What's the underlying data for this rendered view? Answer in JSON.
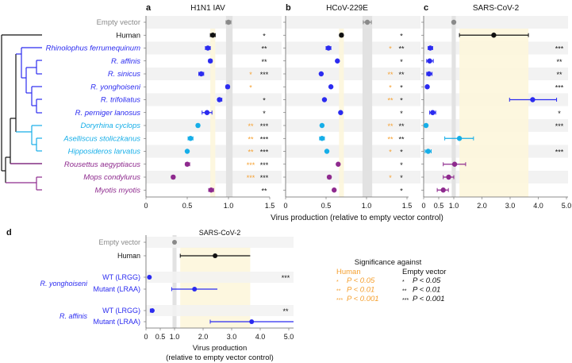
{
  "colors": {
    "black": "#111111",
    "blue": "#2b2bf0",
    "cyan": "#16aee8",
    "purple": "#8e2a8e",
    "grey": "#8a8a8a",
    "orange": "#f5a030",
    "band_grey": "#e2e2e2",
    "band_yellow": "#fdf6dc",
    "stripe": "#f2f2f2"
  },
  "xlabel": "Virus production (relative to empty vector control)",
  "rows": [
    {
      "label": "Empty vector",
      "color": "grey",
      "italic": false
    },
    {
      "label": "Human",
      "color": "black",
      "italic": false
    },
    {
      "label": "Rhinolophus ferrumequinum",
      "color": "blue",
      "italic": true
    },
    {
      "label": "R. affinis",
      "color": "blue",
      "italic": true
    },
    {
      "label": "R. sinicus",
      "color": "blue",
      "italic": true
    },
    {
      "label": "R. yonghoiseni",
      "color": "blue",
      "italic": true
    },
    {
      "label": "R. trifoliatus",
      "color": "blue",
      "italic": true
    },
    {
      "label": "R. perniger lanosus",
      "color": "blue",
      "italic": true
    },
    {
      "label": "Doryrhina cyclops",
      "color": "cyan",
      "italic": true
    },
    {
      "label": "Aselliscus stoliczkanus",
      "color": "cyan",
      "italic": true
    },
    {
      "label": "Hipposideros larvatus",
      "color": "cyan",
      "italic": true
    },
    {
      "label": "Rousettus aegyptiacus",
      "color": "purple",
      "italic": true
    },
    {
      "label": "Mops condylurus",
      "color": "purple",
      "italic": true
    },
    {
      "label": "Myotis myotis",
      "color": "purple",
      "italic": true
    }
  ],
  "chart_data": [
    {
      "panel": "a",
      "type": "scatter",
      "title": "H1N1 IAV",
      "xlim": [
        0,
        1.5
      ],
      "ticks": [
        "0",
        "0.5",
        "1.0",
        "1.5"
      ],
      "tick_values": [
        0,
        0.5,
        1.0,
        1.5
      ],
      "empty_band": [
        0.97,
        1.05
      ],
      "human_band": [
        0.78,
        0.84
      ],
      "values": [
        [
          1.0,
          0.97,
          1.03
        ],
        [
          0.81,
          0.78,
          0.84
        ],
        [
          0.75,
          0.72,
          0.78
        ],
        [
          0.78,
          0.76,
          0.8
        ],
        [
          0.67,
          0.64,
          0.7
        ],
        [
          0.99,
          0.97,
          1.01
        ],
        [
          0.89,
          0.87,
          0.92
        ],
        [
          0.74,
          0.68,
          0.8
        ],
        [
          0.63,
          0.61,
          0.65
        ],
        [
          0.54,
          0.51,
          0.57
        ],
        [
          0.5,
          0.49,
          0.51
        ],
        [
          0.5,
          0.48,
          0.53
        ],
        [
          0.33,
          0.31,
          0.35
        ],
        [
          0.79,
          0.76,
          0.82
        ]
      ],
      "sig_human": [
        "",
        "",
        "",
        "",
        "*",
        "*",
        "",
        "",
        "**",
        "**",
        "**",
        "***",
        "***",
        ""
      ],
      "sig_empty": [
        "",
        "*",
        "**",
        "**",
        "***",
        "",
        "*",
        "*",
        "***",
        "***",
        "***",
        "***",
        "***",
        "**"
      ]
    },
    {
      "panel": "b",
      "type": "scatter",
      "title": "HCoV-229E",
      "xlim": [
        0,
        1.5
      ],
      "ticks": [
        "0",
        "0.5",
        "1.0",
        "1.5"
      ],
      "tick_values": [
        0,
        0.5,
        1.0,
        1.5
      ],
      "empty_band": [
        0.95,
        1.07
      ],
      "human_band": [
        0.66,
        0.72
      ],
      "values": [
        [
          1.01,
          0.96,
          1.06
        ],
        [
          0.69,
          0.67,
          0.71
        ],
        [
          0.53,
          0.5,
          0.56
        ],
        [
          0.64,
          0.63,
          0.65
        ],
        [
          0.44,
          0.43,
          0.45
        ],
        [
          0.56,
          0.55,
          0.57
        ],
        [
          0.48,
          0.47,
          0.49
        ],
        [
          0.68,
          0.67,
          0.69
        ],
        [
          0.45,
          0.44,
          0.46
        ],
        [
          0.45,
          0.42,
          0.48
        ],
        [
          0.51,
          0.5,
          0.52
        ],
        [
          0.65,
          0.64,
          0.66
        ],
        [
          0.54,
          0.52,
          0.56
        ],
        [
          0.6,
          0.59,
          0.61
        ]
      ],
      "sig_human": [
        "",
        "",
        "*",
        "",
        "**",
        "*",
        "**",
        "",
        "**",
        "**",
        "*",
        "",
        "*",
        ""
      ],
      "sig_empty": [
        "",
        "*",
        "**",
        "*",
        "**",
        "*",
        "*",
        "*",
        "**",
        "**",
        "*",
        "*",
        "*",
        "*"
      ]
    },
    {
      "panel": "c",
      "type": "scatter",
      "title": "SARS-CoV-2",
      "xlim": [
        0,
        5
      ],
      "ticks": [
        "0",
        "0.5",
        "1.0",
        "2.0",
        "3.0",
        "4.0",
        "5.0"
      ],
      "tick_values": [
        0,
        0.5,
        1,
        2,
        3,
        4,
        5
      ],
      "empty_band": [
        0.93,
        1.07
      ],
      "human_band": [
        1.2,
        3.65
      ],
      "values": [
        [
          1.0,
          0.98,
          1.02
        ],
        [
          2.42,
          1.2,
          3.65
        ],
        [
          0.22,
          0.15,
          0.3
        ],
        [
          0.2,
          0.1,
          0.32
        ],
        [
          0.18,
          0.1,
          0.28
        ],
        [
          0.12,
          0.08,
          0.16
        ],
        [
          3.8,
          2.98,
          4.65
        ],
        [
          0.3,
          0.2,
          0.4
        ],
        [
          0.08,
          0.06,
          0.1
        ],
        [
          1.2,
          0.7,
          1.7
        ],
        [
          0.15,
          0.05,
          0.25
        ],
        [
          1.03,
          0.65,
          1.42
        ],
        [
          0.83,
          0.65,
          1.0
        ],
        [
          0.65,
          0.45,
          0.82
        ]
      ],
      "sig_human": [
        "",
        "",
        "",
        "",
        "",
        "",
        "",
        "",
        "",
        "",
        "",
        "",
        "",
        ""
      ],
      "sig_empty": [
        "",
        "",
        "***",
        "**",
        "**",
        "***",
        "",
        "*",
        "***",
        "",
        "***",
        "",
        "",
        ""
      ]
    },
    {
      "panel": "d",
      "type": "scatter",
      "title": "SARS-CoV-2",
      "xlim": [
        0,
        5
      ],
      "ticks": [
        "0",
        "0.5",
        "1.0",
        "2.0",
        "3.0",
        "4.0",
        "5.0"
      ],
      "tick_values": [
        0,
        0.5,
        1,
        2,
        3,
        4,
        5
      ],
      "xlabel_line1": "Virus production",
      "xlabel_line2": "(relative to empty vector control)",
      "empty_band": [
        0.93,
        1.07
      ],
      "human_band": [
        1.2,
        3.65
      ],
      "rows": [
        {
          "label": "Empty vector",
          "color": "grey",
          "value": [
            1.0,
            0.98,
            1.02
          ],
          "sig": ""
        },
        {
          "label": "Human",
          "color": "black",
          "value": [
            2.42,
            1.2,
            3.65
          ],
          "sig": ""
        },
        {
          "label": "WT (LRGG)",
          "color": "blue",
          "value": [
            0.12,
            0.08,
            0.16
          ],
          "sig": "***"
        },
        {
          "label": "Mutant (LRAA)",
          "color": "blue",
          "value": [
            1.7,
            0.9,
            2.5
          ],
          "sig": ""
        },
        {
          "label": "WT (LRGG)",
          "color": "blue",
          "value": [
            0.22,
            0.15,
            0.3
          ],
          "sig": "**"
        },
        {
          "label": "Mutant (LRAA)",
          "color": "blue",
          "value": [
            3.7,
            2.25,
            5.2
          ],
          "sig": ""
        }
      ],
      "groups": [
        "R. yonghoiseni",
        "R. affinis"
      ]
    }
  ],
  "legend": {
    "title": "Significance against",
    "human_header": "Human",
    "empty_header": "Empty vector",
    "items": [
      {
        "stars": "*",
        "text": "P < 0.05"
      },
      {
        "stars": "**",
        "text": "P < 0.01"
      },
      {
        "stars": "***",
        "text": "P < 0.001"
      }
    ]
  }
}
